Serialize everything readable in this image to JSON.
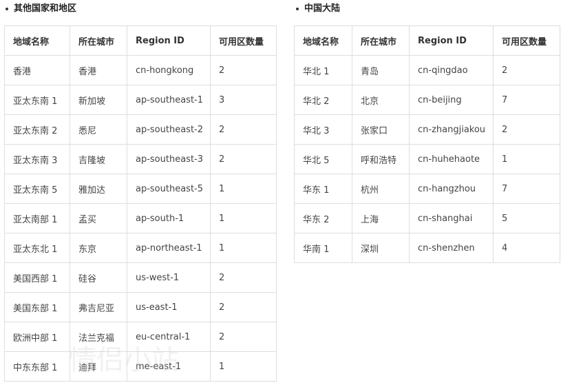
{
  "left": {
    "title": "其他国家和地区",
    "headers": [
      "地域名称",
      "所在城市",
      "Region ID",
      "可用区数量"
    ],
    "rows": [
      [
        "香港",
        "香港",
        "cn-hongkong",
        "2"
      ],
      [
        "亚太东南 1",
        "新加坡",
        "ap-southeast-1",
        "3"
      ],
      [
        "亚太东南 2",
        "悉尼",
        "ap-southeast-2",
        "2"
      ],
      [
        "亚太东南 3",
        "吉隆坡",
        "ap-southeast-3",
        "2"
      ],
      [
        "亚太东南 5",
        "雅加达",
        "ap-southeast-5",
        "1"
      ],
      [
        "亚太南部 1",
        "孟买",
        "ap-south-1",
        "1"
      ],
      [
        "亚太东北 1",
        "东京",
        "ap-northeast-1",
        "1"
      ],
      [
        "美国西部 1",
        "硅谷",
        "us-west-1",
        "2"
      ],
      [
        "美国东部 1",
        "弗吉尼亚",
        "us-east-1",
        "2"
      ],
      [
        "欧洲中部 1",
        "法兰克福",
        "eu-central-1",
        "2"
      ],
      [
        "中东东部 1",
        "迪拜",
        "me-east-1",
        "1"
      ]
    ]
  },
  "right": {
    "title": "中国大陆",
    "headers": [
      "地域名称",
      "所在城市",
      "Region ID",
      "可用区数量"
    ],
    "rows": [
      [
        "华北 1",
        "青岛",
        "cn-qingdao",
        "2"
      ],
      [
        "华北 2",
        "北京",
        "cn-beijing",
        "7"
      ],
      [
        "华北 3",
        "张家口",
        "cn-zhangjiakou",
        "2"
      ],
      [
        "华北 5",
        "呼和浩特",
        "cn-huhehaote",
        "1"
      ],
      [
        "华东 1",
        "杭州",
        "cn-hangzhou",
        "7"
      ],
      [
        "华东 2",
        "上海",
        "cn-shanghai",
        "5"
      ],
      [
        "华南 1",
        "深圳",
        "cn-shenzhen",
        "4"
      ]
    ]
  },
  "watermark": "情侣小站"
}
